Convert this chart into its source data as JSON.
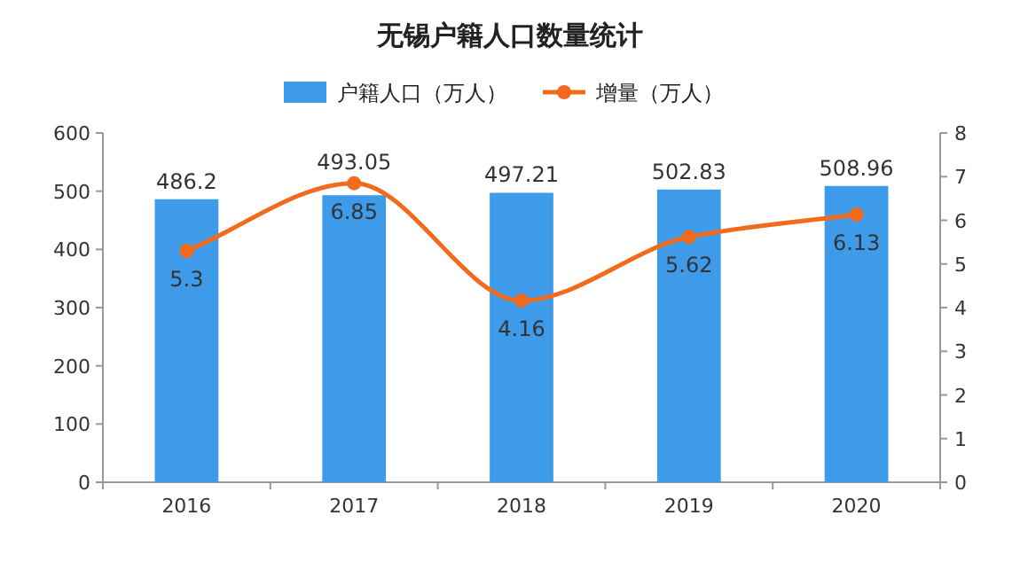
{
  "chart_data": {
    "type": "bar",
    "title": "无锡户籍人口数量统计",
    "categories": [
      "2016",
      "2017",
      "2018",
      "2019",
      "2020"
    ],
    "series": [
      {
        "name": "户籍人口（万人）",
        "color": "#3d9bea",
        "values": [
          486.2,
          493.05,
          497.21,
          502.83,
          508.96
        ]
      },
      {
        "name": "增量（万人）",
        "type": "line",
        "axis": "y2",
        "color": "#f26b1d",
        "marker": "circle",
        "values": [
          5.3,
          6.85,
          4.16,
          5.62,
          6.13
        ]
      }
    ],
    "ylim": [
      0,
      600
    ],
    "yticks": [
      0,
      100,
      200,
      300,
      400,
      500,
      600
    ],
    "y2lim": [
      0,
      8
    ],
    "y2ticks": [
      0,
      1,
      2,
      3,
      4,
      5,
      6,
      7,
      8
    ],
    "data_labels": true,
    "legend": "top",
    "grid": false
  }
}
